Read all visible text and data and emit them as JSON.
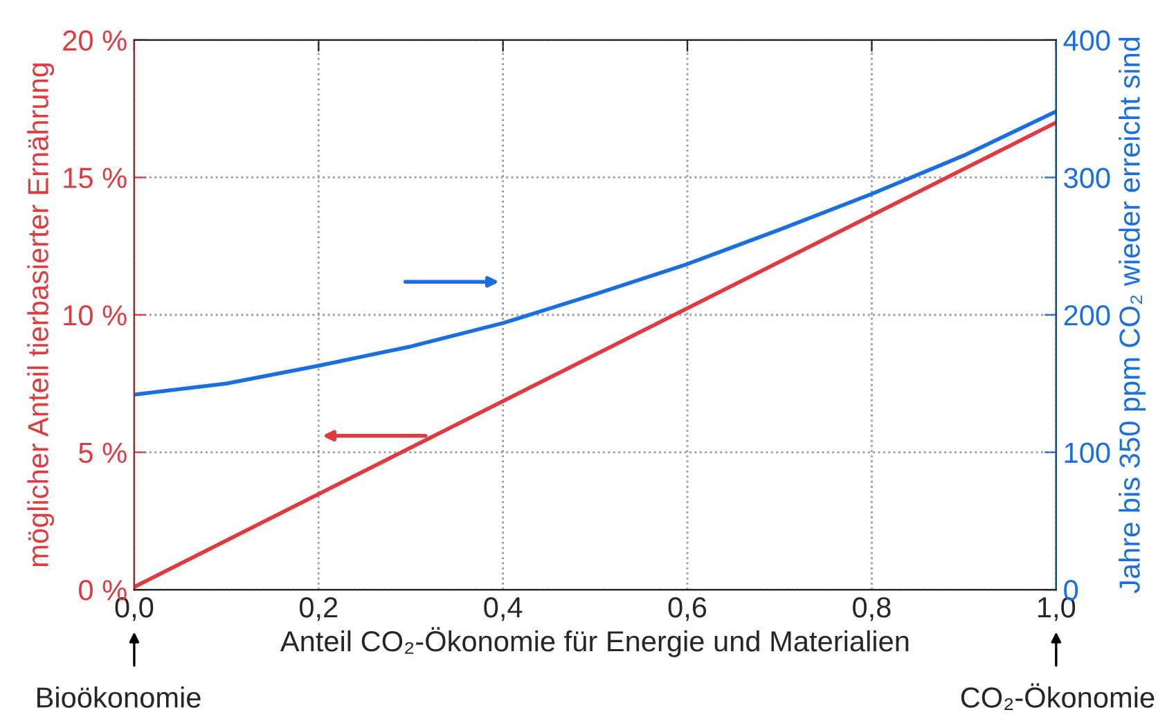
{
  "chart_data": {
    "type": "line",
    "xlabel": "Anteil CO₂-Ökonomie für Energie und Materialien",
    "ylabel": "möglicher Anteil tierbasierter Ernährung",
    "y2label": "Jahre bis 350 ppm CO₂ wieder erreicht sind",
    "series": [
      {
        "color": "#e0393e",
        "x": [
          0,
          1
        ],
        "values": [
          0.1,
          17.0
        ]
      },
      {
        "color": "#1a6fe0",
        "axis": "y2",
        "x": [
          0,
          0.1,
          0.2,
          0.3,
          0.4,
          0.5,
          0.6,
          0.7,
          0.8,
          0.9,
          1.0
        ],
        "values": [
          142,
          150,
          163,
          177,
          194,
          215,
          237,
          262,
          288,
          316,
          348
        ]
      }
    ],
    "xlim": [
      0,
      1
    ],
    "xticks": [
      {
        "value": 0,
        "label": "0,0"
      },
      {
        "value": 0.2,
        "label": "0,2"
      },
      {
        "value": 0.4,
        "label": "0,4"
      },
      {
        "value": 0.6,
        "label": "0,6"
      },
      {
        "value": 0.8,
        "label": "0,8"
      },
      {
        "value": 1,
        "label": "1,0"
      }
    ],
    "ylim": [
      0,
      20
    ],
    "yticks": [
      {
        "value": 0,
        "label": "0 %"
      },
      {
        "value": 5,
        "label": "5 %"
      },
      {
        "value": 10,
        "label": "10 %"
      },
      {
        "value": 15,
        "label": "15 %"
      },
      {
        "value": 20,
        "label": "20 %"
      }
    ],
    "y2lim": [
      0,
      400
    ],
    "y2ticks": [
      0,
      100,
      200,
      300,
      400
    ],
    "grid": true,
    "legend": false,
    "marker": "none",
    "line_style": "solid",
    "annotations": [
      "Bioökonomie",
      "CO₂-Ökonomie"
    ]
  }
}
